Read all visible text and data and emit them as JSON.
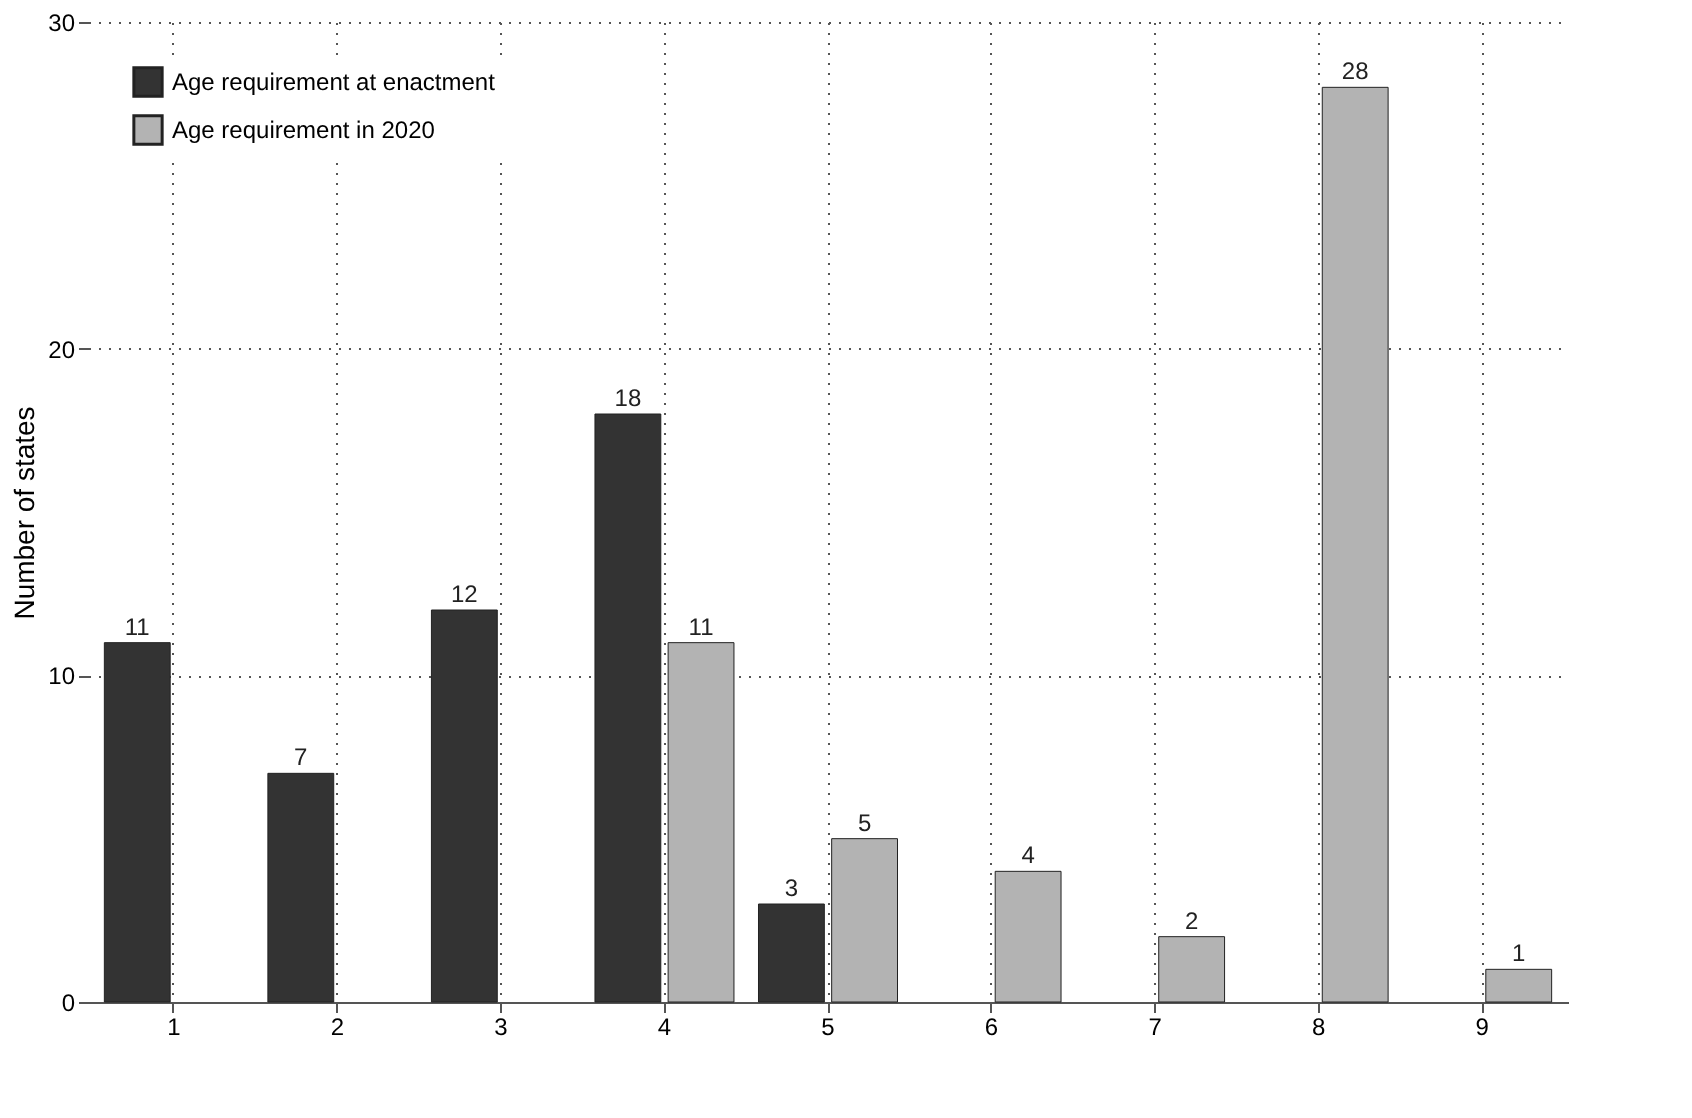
{
  "chart_data": {
    "type": "bar",
    "ylabel": "Number of states",
    "categories": [
      "1",
      "2",
      "3",
      "4",
      "5",
      "6",
      "7",
      "8",
      "9"
    ],
    "series": [
      {
        "name": "Age requirement at enactment",
        "color": "#333333",
        "values": [
          11,
          7,
          12,
          18,
          3,
          null,
          null,
          null,
          null
        ]
      },
      {
        "name": "Age requirement in 2020",
        "color": "#b3b3b3",
        "values": [
          null,
          null,
          null,
          11,
          5,
          4,
          2,
          28,
          1
        ]
      }
    ],
    "ylim": [
      0,
      30
    ],
    "yticks": [
      0,
      10,
      20,
      30
    ],
    "grid": true,
    "legend": "top left",
    "data_labels": true
  }
}
